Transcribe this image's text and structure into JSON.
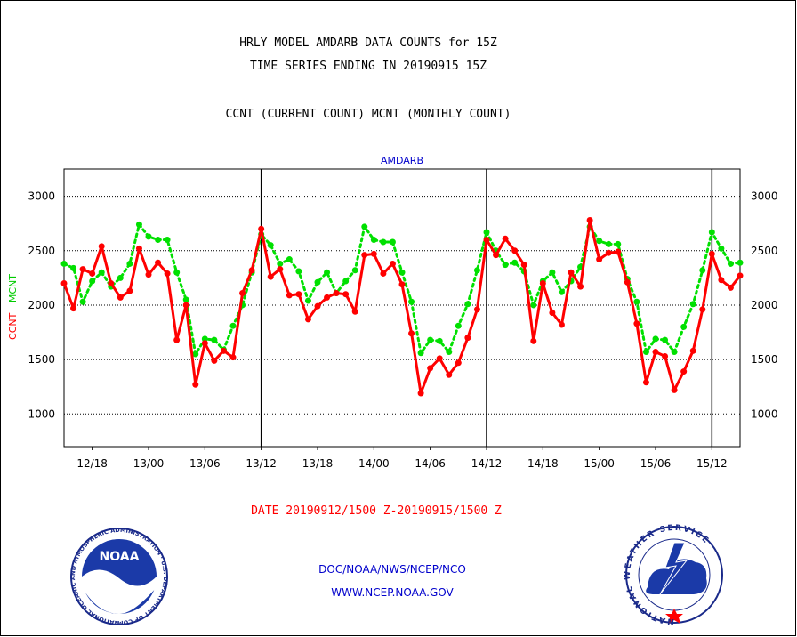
{
  "title_line1": "HRLY MODEL AMDARB DATA COUNTS for 15Z",
  "title_line2": "TIME SERIES ENDING IN 20190915 15Z",
  "subtitle": "CCNT (CURRENT COUNT) MCNT (MONTHLY COUNT)",
  "panel_label": "AMDARB",
  "date_range": "DATE 20190912/1500 Z-20190915/1500 Z",
  "credit_line1": "DOC/NOAA/NWS/NCEP/NCO",
  "credit_line2": "WWW.NCEP.NOAA.GOV",
  "logos": {
    "noaa_text": "NOAA",
    "noaa_ring_text": "NATIONAL OCEANIC AND ATMOSPHERIC ADMINISTRATION · U.S. DEPARTMENT OF COMMERCE ·",
    "nws_ring_text": "NATIONAL WEATHER SERVICE"
  },
  "colors": {
    "ccnt": "#ff0000",
    "mcnt": "#00e000",
    "grid": "#000000",
    "panel_label": "#0000cc",
    "date_range": "#ff0000",
    "credits": "#0000cc"
  },
  "chart_data": {
    "type": "line",
    "title": "HRLY MODEL AMDARB DATA COUNTS for 15Z",
    "ylabel_ccnt": "CCNT",
    "ylabel_mcnt": "MCNT",
    "xlabel": "DATE 20190912/1500 Z-20190915/1500 Z",
    "ylim": [
      700,
      3250
    ],
    "yticks": [
      1000,
      1500,
      2000,
      2500,
      3000
    ],
    "y_grid": "dotted",
    "x_tick_labels": [
      "12/18",
      "13/00",
      "13/06",
      "13/12",
      "13/18",
      "14/00",
      "14/06",
      "14/12",
      "14/18",
      "15/00",
      "15/06",
      "15/12"
    ],
    "x_tick_index": [
      3,
      9,
      15,
      21,
      27,
      33,
      39,
      45,
      51,
      57,
      63,
      69
    ],
    "day_boundaries_index": [
      21,
      45,
      69
    ],
    "series": [
      {
        "name": "CCNT",
        "style": "solid",
        "values": [
          2200,
          1970,
          2330,
          2290,
          2540,
          2200,
          2070,
          2130,
          2520,
          2280,
          2390,
          2290,
          1680,
          2000,
          1270,
          1650,
          1490,
          1580,
          1520,
          2110,
          2320,
          2700,
          2260,
          2330,
          2090,
          2100,
          1870,
          1990,
          2070,
          2110,
          2100,
          1940,
          2460,
          2470,
          2290,
          2380,
          2190,
          1740,
          1190,
          1420,
          1510,
          1360,
          1470,
          1700,
          1960,
          2600,
          2460,
          2610,
          2500,
          2370,
          1670,
          2200,
          1930,
          1820,
          2300,
          2170,
          2780,
          2420,
          2480,
          2490,
          2210,
          1830,
          1290,
          1570,
          1530,
          1220,
          1390,
          1580,
          1960,
          2470,
          2230,
          2160,
          2270
        ]
      },
      {
        "name": "MCNT",
        "style": "dotted",
        "values": [
          2380,
          2340,
          2030,
          2220,
          2300,
          2170,
          2250,
          2380,
          2740,
          2630,
          2600,
          2600,
          2300,
          2050,
          1550,
          1690,
          1680,
          1590,
          1810,
          2000,
          2300,
          2650,
          2550,
          2380,
          2420,
          2310,
          2040,
          2210,
          2300,
          2110,
          2220,
          2320,
          2720,
          2600,
          2580,
          2580,
          2300,
          2030,
          1560,
          1680,
          1670,
          1570,
          1810,
          2010,
          2320,
          2670,
          2500,
          2370,
          2390,
          2310,
          2000,
          2220,
          2300,
          2120,
          2220,
          2350,
          2720,
          2590,
          2560,
          2560,
          2240,
          2030,
          1570,
          1690,
          1680,
          1570,
          1800,
          2010,
          2320,
          2670,
          2520,
          2380,
          2390
        ]
      }
    ]
  }
}
